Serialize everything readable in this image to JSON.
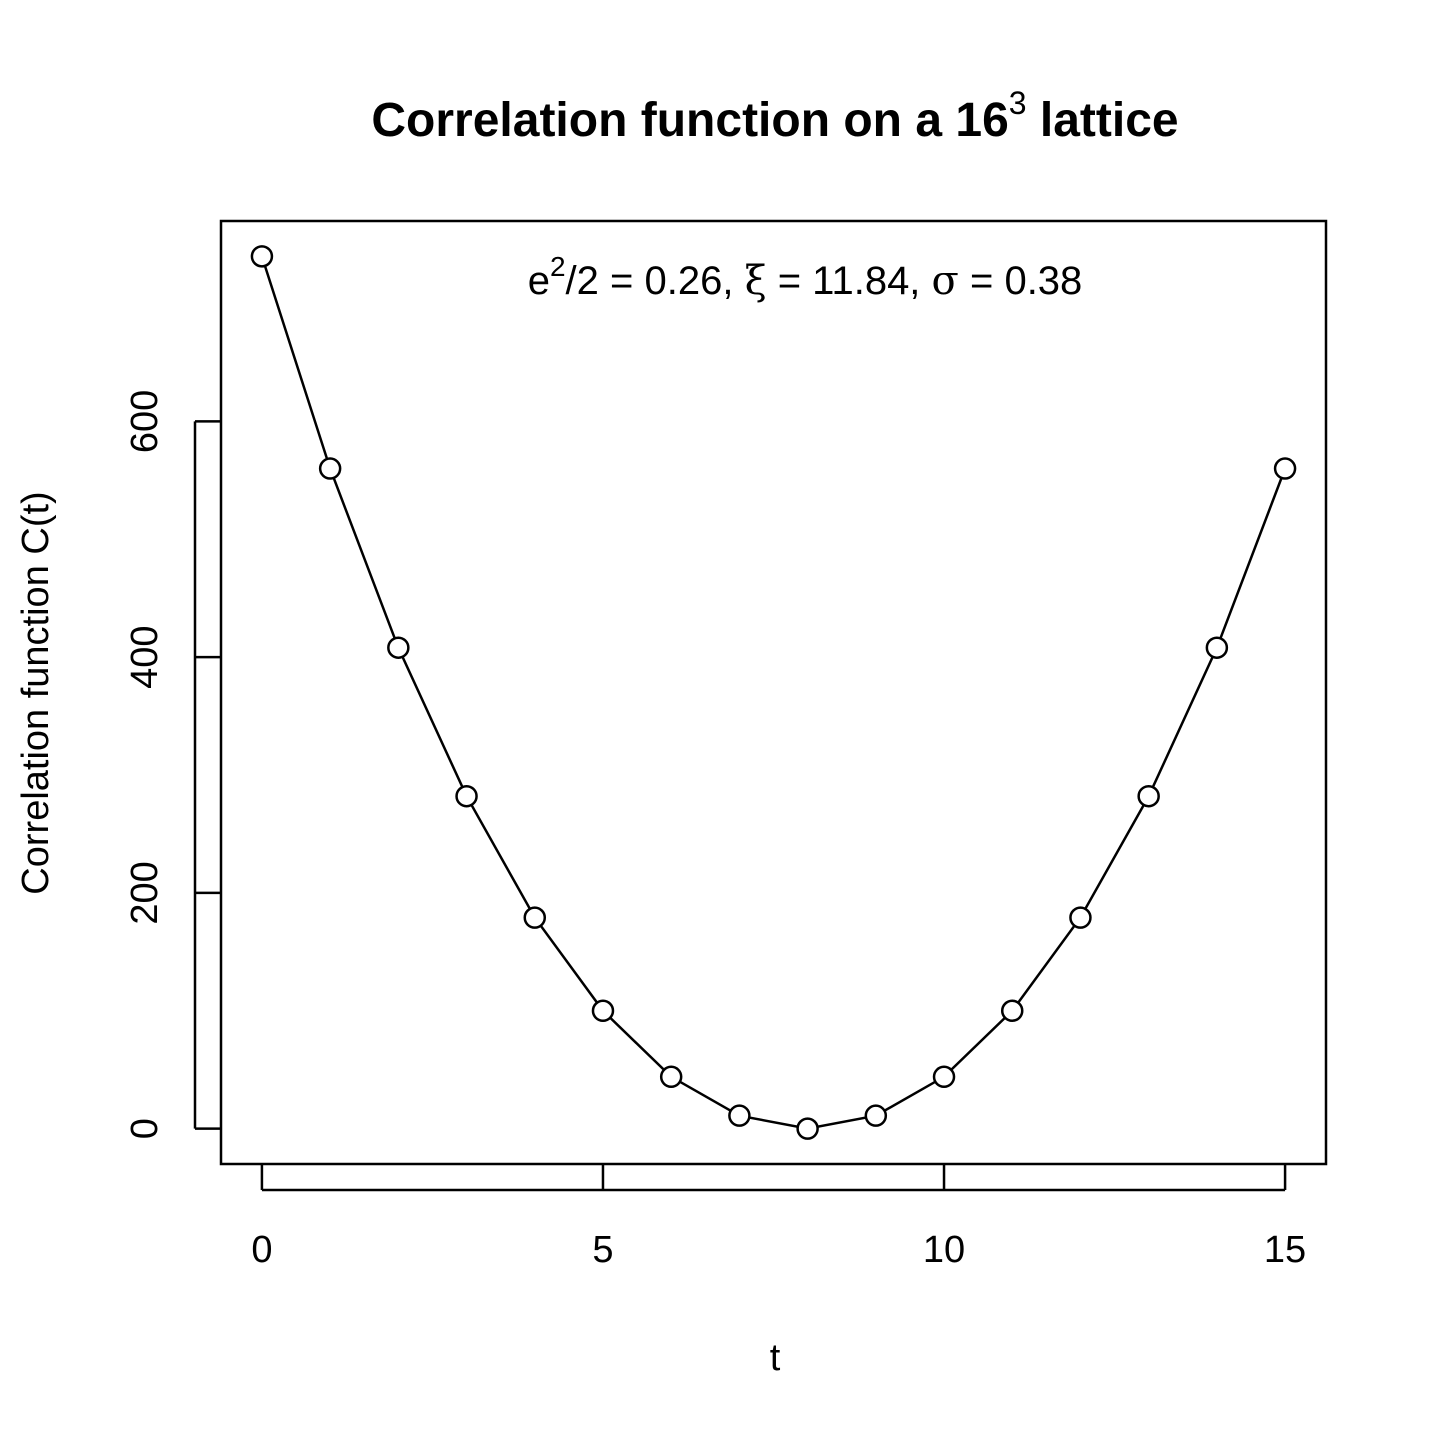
{
  "chart_data": {
    "type": "line",
    "title": {
      "text": "Correlation function on a 16",
      "superscript": "3",
      "suffix": " lattice"
    },
    "xlabel": "t",
    "ylabel": "Correlation function C(t)",
    "xlim": [
      -0.6,
      15.6
    ],
    "ylim": [
      -30,
      770
    ],
    "xticks": [
      0,
      5,
      10,
      15
    ],
    "xtick_labels": [
      "0",
      "5",
      "10",
      "15"
    ],
    "yticks": [
      0,
      200,
      400,
      600
    ],
    "ytick_labels": [
      "0",
      "200",
      "400",
      "600"
    ],
    "grid": false,
    "marker": "open-circle",
    "annotation": {
      "base": "e",
      "sup": "2",
      "rest1": "/2 =  0.26, ",
      "xi": "ξ",
      "rest2": " =  11.84, ",
      "sigma": "σ",
      "rest3": " =  0.38"
    },
    "x": [
      0,
      1,
      2,
      3,
      4,
      5,
      6,
      7,
      8,
      9,
      10,
      11,
      12,
      13,
      14,
      15
    ],
    "series": [
      {
        "values": [
          740,
          560,
          408,
          282,
          179,
          100,
          44,
          11,
          0,
          11,
          44,
          100,
          179,
          282,
          408,
          560
        ]
      }
    ]
  }
}
